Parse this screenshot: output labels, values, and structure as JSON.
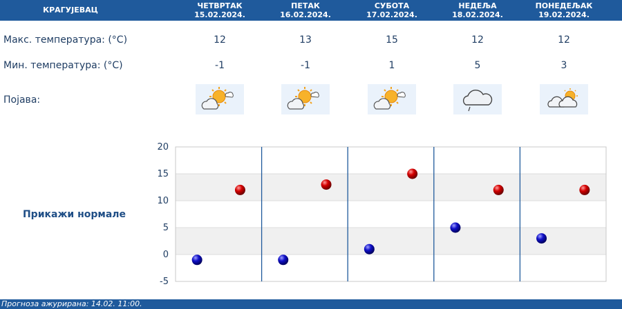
{
  "header": {
    "city": "КРАГУЈЕВАЦ",
    "days": [
      {
        "name": "ЧЕТВРТАК",
        "date": "15.02.2024."
      },
      {
        "name": "ПЕТАК",
        "date": "16.02.2024."
      },
      {
        "name": "СУБОТА",
        "date": "17.02.2024."
      },
      {
        "name": "НЕДЕЉА",
        "date": "18.02.2024."
      },
      {
        "name": "ПОНЕДЕЉАК",
        "date": "19.02.2024."
      }
    ]
  },
  "rows": {
    "max_label": "Макс. температура: (°C)",
    "min_label": "Мин. температура: (°C)",
    "phenomenon_label": "Појава:",
    "max_values": [
      "12",
      "13",
      "15",
      "12",
      "12"
    ],
    "min_values": [
      "-1",
      "-1",
      "1",
      "5",
      "3"
    ],
    "icons": [
      "sun-cloud-icon",
      "sun-cloud-icon",
      "sun-cloud-icon",
      "cloud-drizzle-icon",
      "cloud-sun-icon"
    ]
  },
  "normals_button": "Прикажи нормале",
  "footer": {
    "updated": "Прогноза ажурирана:  14.02. 11:00."
  },
  "colors": {
    "header_bg": "#1f5a9c",
    "text": "#1f3d63",
    "max_point": "#cc0000",
    "min_point": "#0000b0",
    "band": "#f0f0f0"
  },
  "chart_data": {
    "type": "scatter",
    "categories": [
      "15.02.2024.",
      "16.02.2024.",
      "17.02.2024.",
      "18.02.2024.",
      "19.02.2024."
    ],
    "series": [
      {
        "values": [
          12,
          13,
          15,
          12,
          12
        ]
      },
      {
        "values": [
          -1,
          -1,
          1,
          5,
          3
        ]
      }
    ],
    "ylim": [
      -5,
      20
    ],
    "yticks": [
      -5,
      0,
      5,
      10,
      15,
      20
    ],
    "grid": "alternating horizontal bands, vertical day separators"
  }
}
